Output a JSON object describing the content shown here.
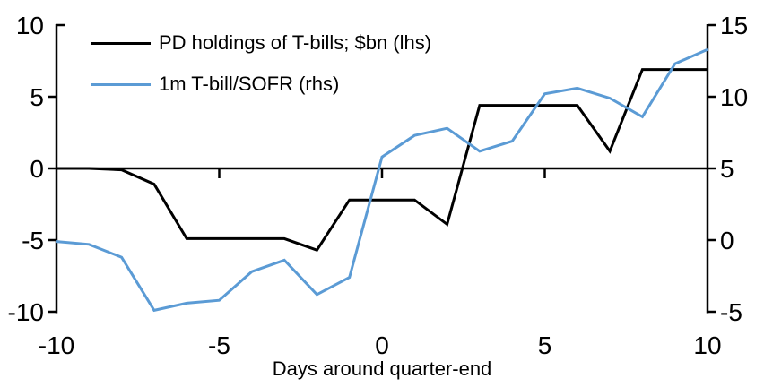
{
  "chart_data": {
    "type": "line",
    "title": "",
    "xlabel": "Days around quarter-end",
    "x": [
      -10,
      -9,
      -8,
      -7,
      -6,
      -5,
      -4,
      -3,
      -2,
      -1,
      0,
      1,
      2,
      3,
      4,
      5,
      6,
      7,
      8,
      9,
      10
    ],
    "series": [
      {
        "name": "PD holdings of T-bills; $bn (lhs)",
        "axis": "left",
        "color": "#000000",
        "values": [
          0,
          0,
          -0.1,
          -1.1,
          -4.9,
          -4.9,
          -4.9,
          -4.9,
          -5.7,
          -2.2,
          -2.2,
          -2.2,
          -3.9,
          4.4,
          4.4,
          4.4,
          4.4,
          1.2,
          6.9,
          6.9,
          6.9
        ]
      },
      {
        "name": "1m T-bill/SOFR (rhs)",
        "axis": "right",
        "color": "#5B9BD5",
        "values": [
          -0.1,
          -0.3,
          -1.2,
          -4.9,
          -4.4,
          -4.2,
          -2.2,
          -1.4,
          -3.8,
          -2.6,
          5.8,
          7.3,
          7.8,
          6.2,
          6.9,
          10.2,
          10.6,
          9.9,
          8.6,
          12.3,
          13.3
        ]
      }
    ],
    "x_axis": {
      "label": "Days around quarter-end",
      "ticks": [
        -10,
        -5,
        0,
        5,
        10
      ],
      "range": [
        -10,
        10
      ]
    },
    "left_axis": {
      "ticks": [
        10,
        5,
        0,
        -5,
        -10
      ],
      "range": [
        -10,
        10
      ]
    },
    "right_axis": {
      "ticks": [
        15,
        10,
        5,
        0,
        -5
      ],
      "range": [
        -5,
        15
      ]
    },
    "legend_position": "top-left",
    "grid": false
  },
  "colors": {
    "background": "#FFFFFF",
    "axis": "#000000",
    "text": "#000000",
    "series_pd_holdings": "#000000",
    "series_tbill_sofr": "#5B9BD5"
  }
}
